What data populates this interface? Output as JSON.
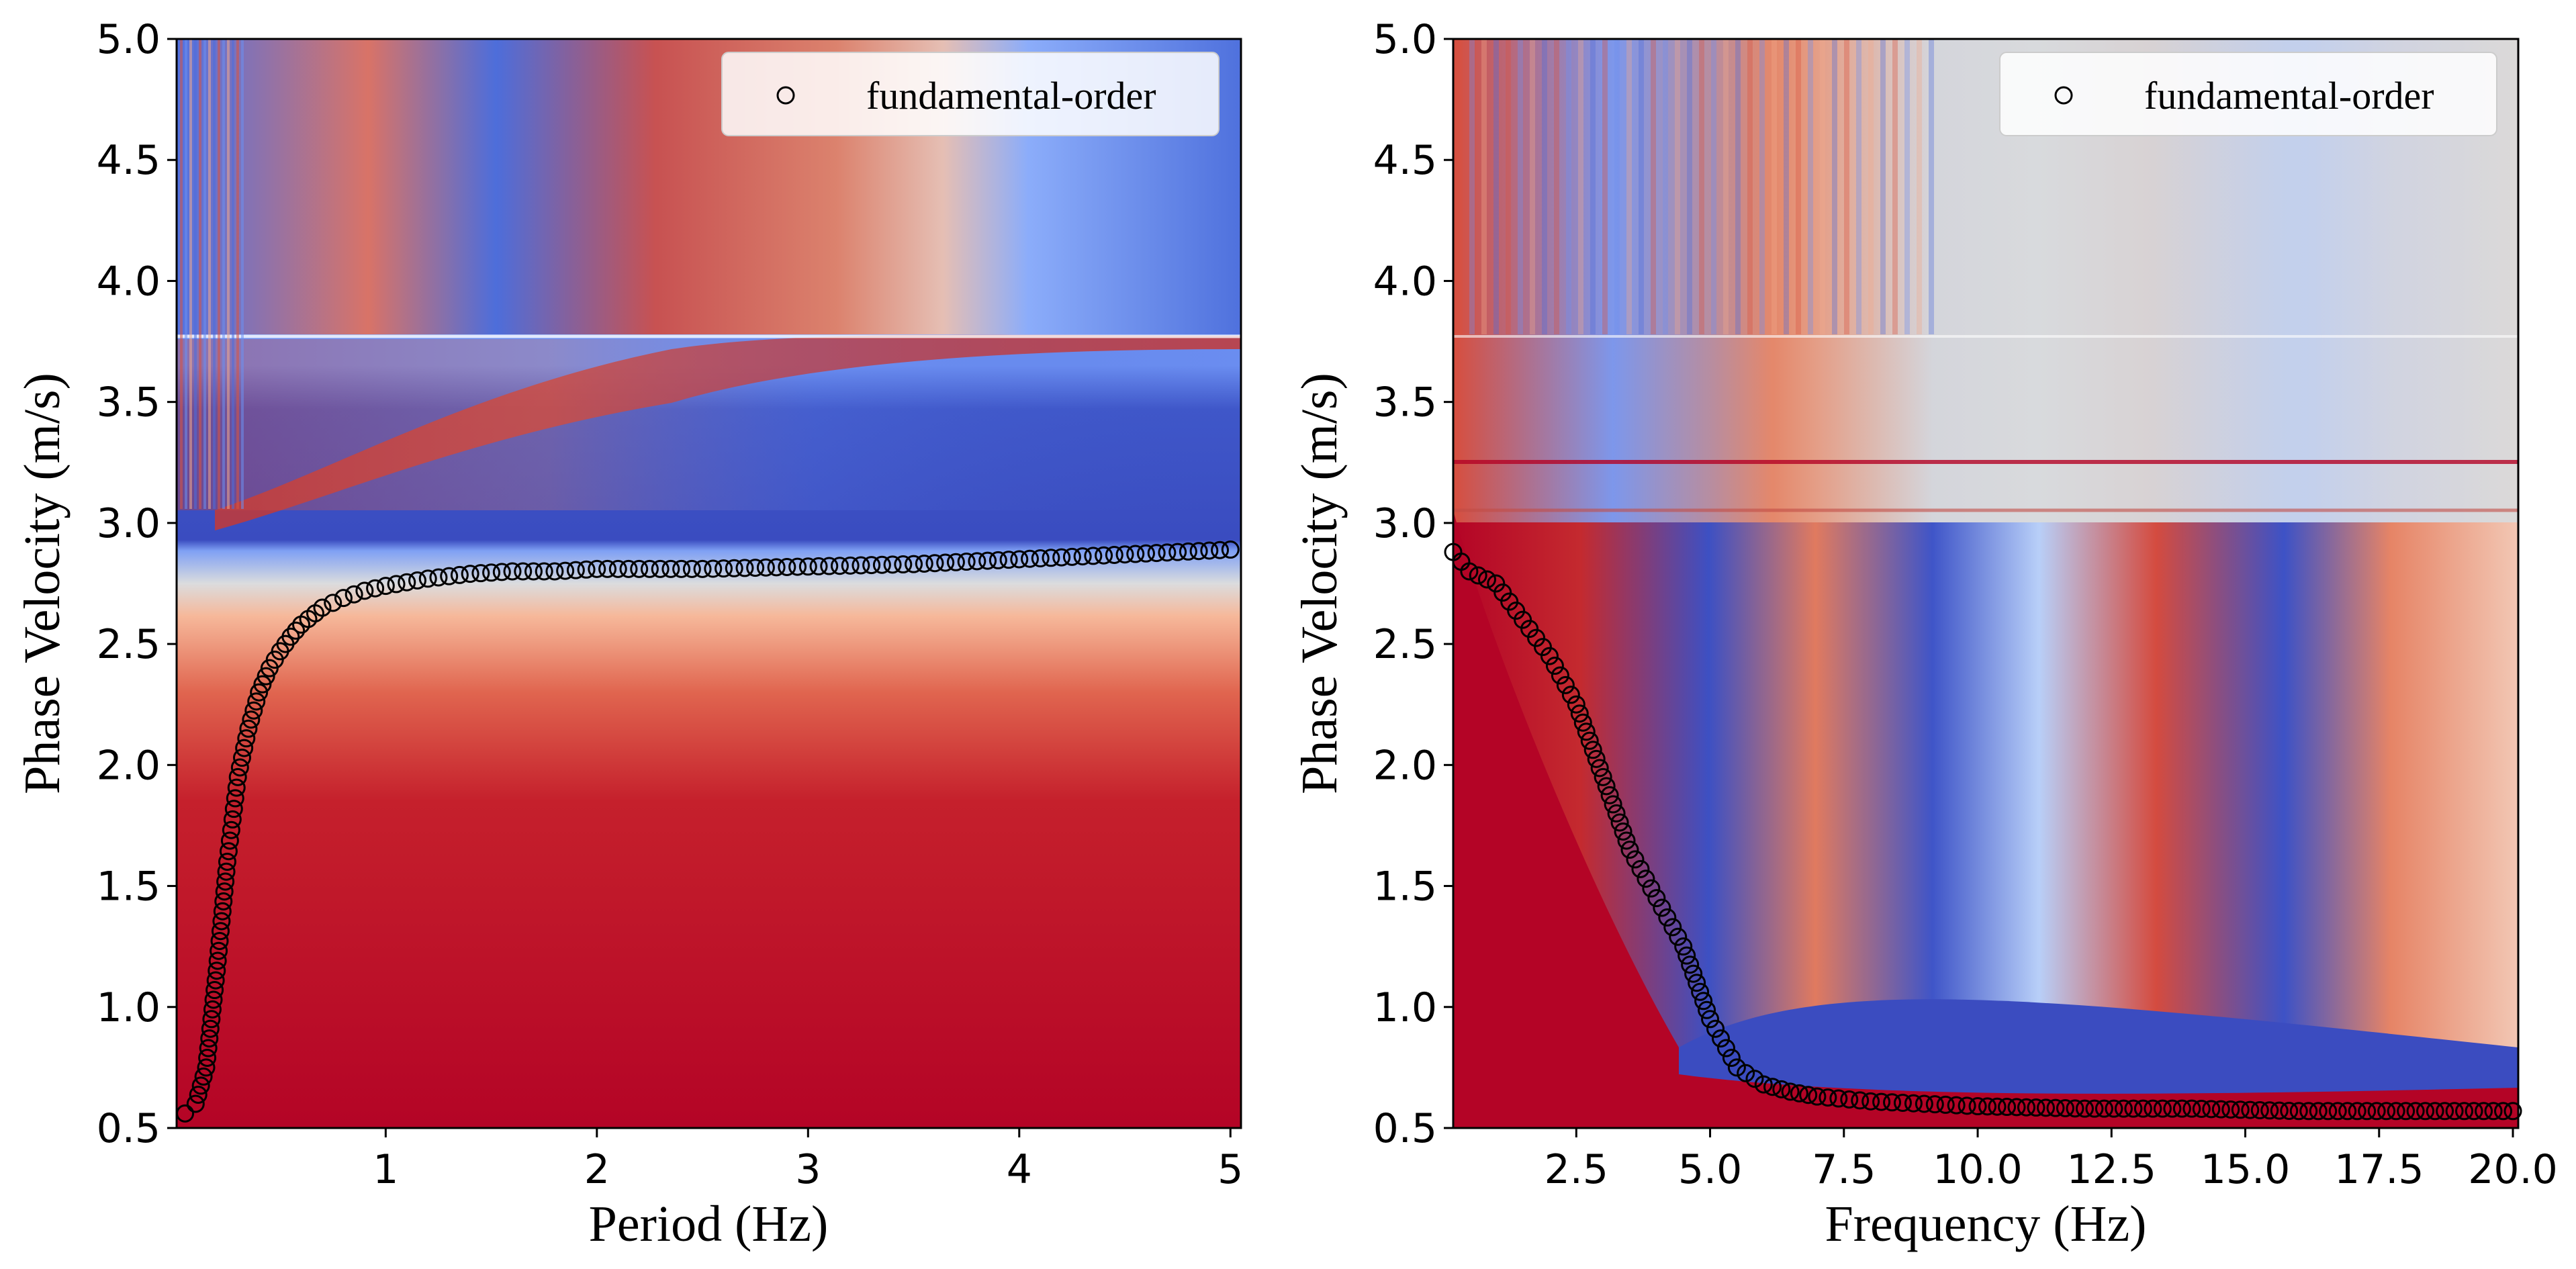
{
  "chart_data": [
    {
      "type": "heatmap",
      "xlabel": "Period (Hz)",
      "ylabel": "Phase Velocity (m/s)",
      "xlim": [
        0.01,
        5.05
      ],
      "ylim": [
        0.5,
        5.0
      ],
      "xticks": [
        1,
        2,
        3,
        4,
        5
      ],
      "xtick_labels": [
        "1",
        "2",
        "3",
        "4",
        "5"
      ],
      "yticks": [
        0.5,
        1.0,
        1.5,
        2.0,
        2.5,
        3.0,
        3.5,
        4.0,
        4.5,
        5.0
      ],
      "ytick_labels": [
        "0.5",
        "1.0",
        "1.5",
        "2.0",
        "2.5",
        "3.0",
        "3.5",
        "4.0",
        "4.5",
        "5.0"
      ],
      "colormap": "coolwarm",
      "legend": {
        "label": "fundamental-order",
        "marker": "open-circle",
        "placement": "top-right"
      },
      "series": [
        {
          "name": "fundamental-order",
          "x": [
            0.05,
            0.1,
            0.15,
            0.2,
            0.25,
            0.3,
            0.35,
            0.4,
            0.45,
            0.5,
            0.55,
            0.6,
            0.7,
            0.8,
            0.9,
            1.0,
            1.2,
            1.4,
            1.6,
            1.8,
            2.0,
            2.5,
            3.0,
            3.5,
            4.0,
            4.5,
            5.0
          ],
          "y": [
            0.56,
            0.6,
            0.75,
            1.15,
            1.6,
            1.95,
            2.15,
            2.3,
            2.4,
            2.47,
            2.53,
            2.58,
            2.65,
            2.69,
            2.72,
            2.74,
            2.77,
            2.79,
            2.8,
            2.8,
            2.81,
            2.81,
            2.82,
            2.83,
            2.85,
            2.87,
            2.89
          ]
        }
      ]
    },
    {
      "type": "heatmap",
      "xlabel": "Frequency (Hz)",
      "ylabel": "Phase Velocity (m/s)",
      "xlim": [
        0.2,
        20.1
      ],
      "ylim": [
        0.5,
        5.0
      ],
      "xticks": [
        2.5,
        5.0,
        7.5,
        10.0,
        12.5,
        15.0,
        17.5,
        20.0
      ],
      "xtick_labels": [
        "2.5",
        "5.0",
        "7.5",
        "10.0",
        "12.5",
        "15.0",
        "17.5",
        "20.0"
      ],
      "yticks": [
        0.5,
        1.0,
        1.5,
        2.0,
        2.5,
        3.0,
        3.5,
        4.0,
        4.5,
        5.0
      ],
      "ytick_labels": [
        "0.5",
        "1.0",
        "1.5",
        "2.0",
        "2.5",
        "3.0",
        "3.5",
        "4.0",
        "4.5",
        "5.0"
      ],
      "colormap": "coolwarm",
      "legend": {
        "label": "fundamental-order",
        "marker": "open-circle",
        "placement": "top-right"
      },
      "series": [
        {
          "name": "fundamental-order",
          "x": [
            0.2,
            0.5,
            1.0,
            1.5,
            2.0,
            2.5,
            3.0,
            3.5,
            4.0,
            4.5,
            5.0,
            5.5,
            6.0,
            6.5,
            7.0,
            8.0,
            9.0,
            10.0,
            12.0,
            14.0,
            16.0,
            18.0,
            20.0
          ],
          "y": [
            2.88,
            2.8,
            2.75,
            2.6,
            2.45,
            2.25,
            1.95,
            1.65,
            1.45,
            1.25,
            0.95,
            0.75,
            0.68,
            0.65,
            0.63,
            0.61,
            0.6,
            0.59,
            0.58,
            0.58,
            0.57,
            0.57,
            0.57
          ]
        }
      ]
    }
  ]
}
